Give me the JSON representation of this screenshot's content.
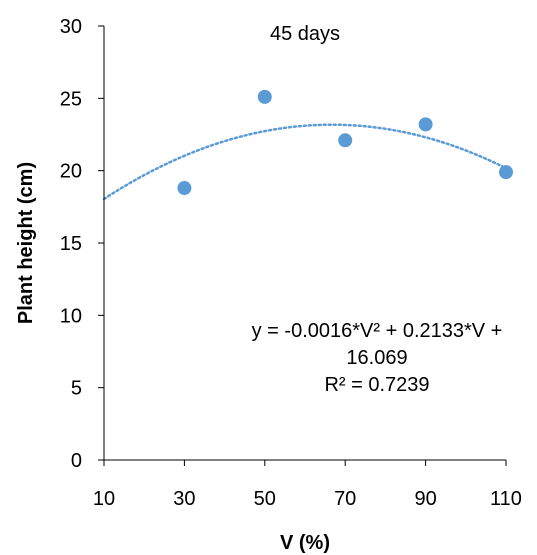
{
  "chart_data": {
    "type": "scatter",
    "title": "45 days",
    "xlabel": "V (%)",
    "ylabel": "Plant height (cm)",
    "xlim": [
      10,
      110
    ],
    "ylim": [
      0,
      30
    ],
    "xticks": [
      10,
      30,
      50,
      70,
      90,
      110
    ],
    "yticks": [
      0,
      5,
      10,
      15,
      20,
      25,
      30
    ],
    "x_tick_labels": [
      "10",
      "30",
      "50",
      "70",
      "90",
      "110"
    ],
    "y_tick_labels": [
      "0",
      "5",
      "10",
      "15",
      "20",
      "25",
      "30"
    ],
    "grid": false,
    "series": [
      {
        "x": [
          30,
          50,
          70,
          90,
          110
        ],
        "y": [
          18.8,
          25.1,
          22.1,
          23.2,
          19.9
        ],
        "color": "#5b9bd5"
      }
    ],
    "trendline": {
      "type": "polynomial",
      "coefficients": [
        -0.0016,
        0.2133,
        16.069
      ],
      "style": "dotted",
      "color": "#5b9bd5"
    },
    "annotations": {
      "equation_line1": "y = -0.0016*V² + 0.2133*V +",
      "equation_line2": "16.069",
      "r_squared": "R² = 0.7239"
    }
  }
}
